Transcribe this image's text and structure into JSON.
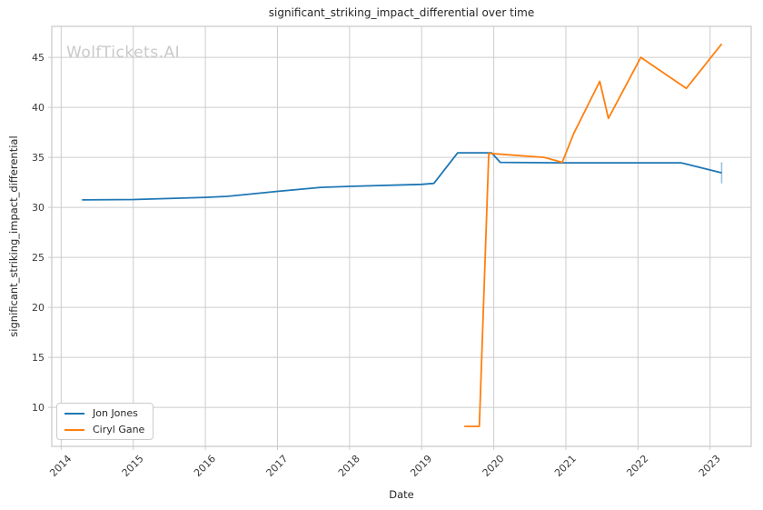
{
  "chart_data": {
    "type": "line",
    "title": "significant_striking_impact_differential over time",
    "xlabel": "Date",
    "ylabel": "significant_striking_impact_differential",
    "watermark": "WolfTickets.AI",
    "grid": true,
    "legend_position": "lower left",
    "xlim": [
      2013.87,
      2023.57
    ],
    "ylim": [
      6.1,
      48.1
    ],
    "x_ticks": [
      2014,
      2015,
      2016,
      2017,
      2018,
      2019,
      2020,
      2021,
      2022,
      2023
    ],
    "y_ticks": [
      10,
      15,
      20,
      25,
      30,
      35,
      40,
      45
    ],
    "colors": {
      "grid": "#cccccc",
      "text": "#262626",
      "tick_text": "#3a3a3a",
      "watermark": "#c9c9c9",
      "background": "#ffffff"
    },
    "series": [
      {
        "name": "Jon Jones",
        "color": "#1f77b4",
        "x": [
          2014.29,
          2015.0,
          2016.0,
          2016.3,
          2017.0,
          2017.6,
          2018.0,
          2019.0,
          2019.17,
          2019.5,
          2019.97,
          2020.09,
          2021.0,
          2022.6,
          2023.16
        ],
        "y": [
          30.75,
          30.78,
          31.0,
          31.1,
          31.6,
          32.0,
          32.1,
          32.3,
          32.4,
          35.45,
          35.45,
          34.5,
          34.45,
          34.45,
          33.45
        ]
      },
      {
        "name": "Ciryl Gane",
        "color": "#ff7f0e",
        "x": [
          2019.59,
          2019.8,
          2019.93,
          2020.7,
          2020.95,
          2021.11,
          2021.47,
          2021.59,
          2022.04,
          2022.67,
          2023.16
        ],
        "y": [
          8.1,
          8.1,
          35.4,
          35.0,
          34.5,
          37.4,
          42.6,
          38.9,
          45.0,
          41.9,
          46.35
        ]
      }
    ],
    "end_marker": {
      "series": "Jon Jones",
      "x": 2023.16,
      "y_low": 32.4,
      "y_high": 34.5,
      "opacity": 0.45
    }
  }
}
